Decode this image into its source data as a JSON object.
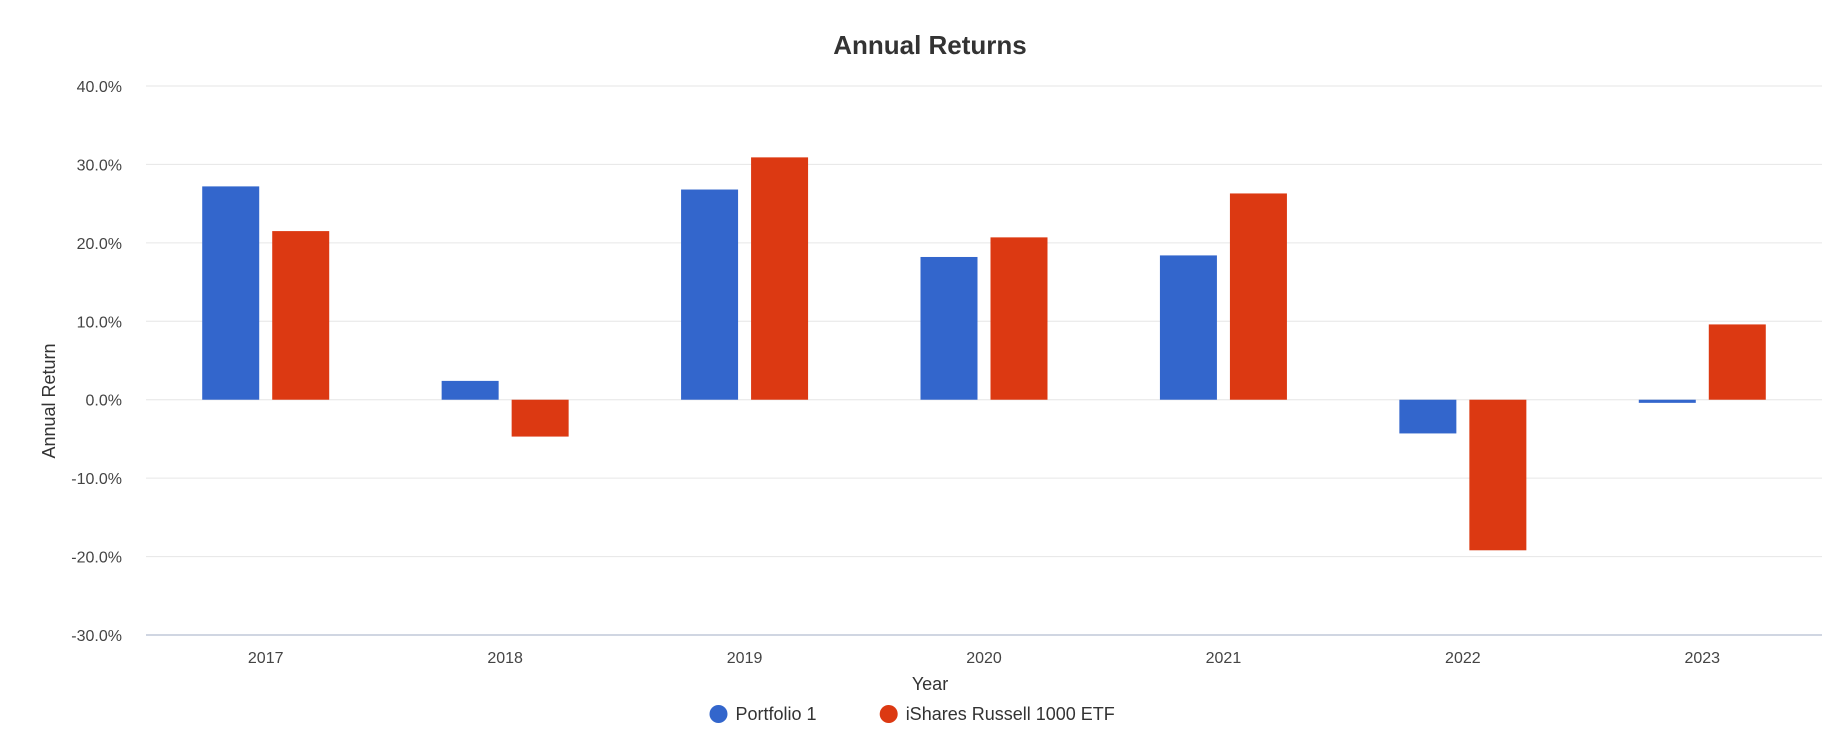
{
  "chart_data": {
    "type": "bar",
    "title": "Annual Returns",
    "xlabel": "Year",
    "ylabel": "Annual Return",
    "categories": [
      "2017",
      "2018",
      "2019",
      "2020",
      "2021",
      "2022",
      "2023"
    ],
    "series": [
      {
        "name": "Portfolio 1",
        "color": "#3366cc",
        "values": [
          27.2,
          2.4,
          26.8,
          18.2,
          18.4,
          -4.3,
          -0.4
        ]
      },
      {
        "name": "iShares Russell 1000 ETF",
        "color": "#dc3912",
        "values": [
          21.5,
          -4.7,
          30.9,
          20.7,
          26.3,
          -19.2,
          9.6
        ]
      }
    ],
    "ylim": [
      -30,
      40
    ],
    "yticks": [
      40,
      30,
      20,
      10,
      0,
      -10,
      -20,
      -30
    ],
    "ytick_labels": [
      "40.0%",
      "30.0%",
      "20.0%",
      "10.0%",
      "0.0%",
      "-10.0%",
      "-20.0%",
      "-30.0%"
    ],
    "grid": true,
    "legend_position": "bottom-center"
  }
}
